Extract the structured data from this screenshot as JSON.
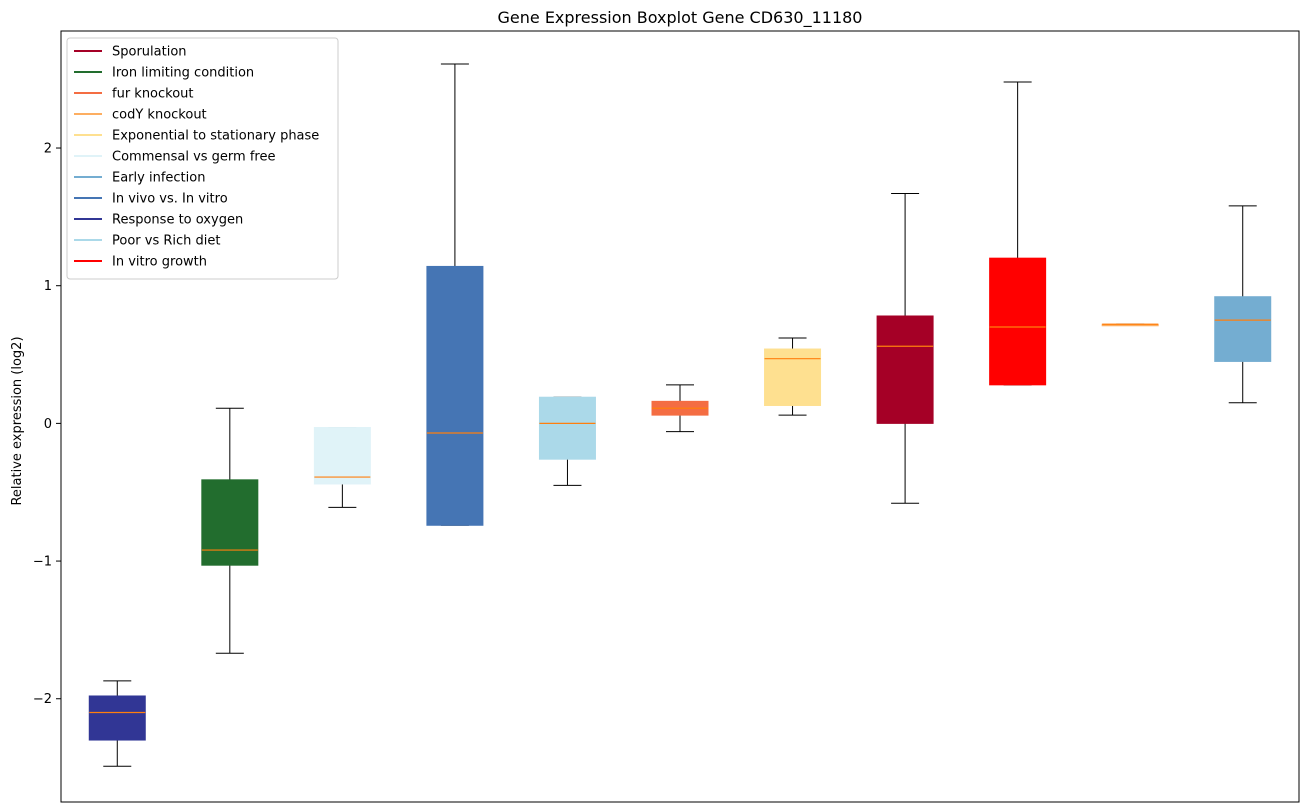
{
  "chart_data": {
    "type": "boxplot",
    "title": "Gene Expression Boxplot Gene CD630_11180",
    "xlabel": "",
    "ylabel": "Relative expression (log2)",
    "ylim": [
      -2.75,
      2.85
    ],
    "yticks": [
      -2,
      -1,
      0,
      1,
      2
    ],
    "ytick_labels": [
      "−2",
      "−1",
      "0",
      "1",
      "2"
    ],
    "grid": false,
    "legend_position": "top-left",
    "legend": [
      {
        "label": "Sporulation",
        "color": "#a50026"
      },
      {
        "label": "Iron limiting condition",
        "color": "#226d2e"
      },
      {
        "label": "fur knockout",
        "color": "#f46d43"
      },
      {
        "label": "codY knockout",
        "color": "#fdae61"
      },
      {
        "label": "Exponential to stationary phase",
        "color": "#fee090"
      },
      {
        "label": "Commensal vs germ free",
        "color": "#e0f3f8"
      },
      {
        "label": "Early infection",
        "color": "#74add1"
      },
      {
        "label": "In vivo vs. In vitro",
        "color": "#4575b4"
      },
      {
        "label": "Response to oxygen",
        "color": "#313695"
      },
      {
        "label": "Poor vs Rich diet",
        "color": "#abd9e9"
      },
      {
        "label": "In vitro growth",
        "color": "#ff0000"
      }
    ],
    "boxes": [
      {
        "group": "Response to oxygen",
        "whisker_low": -2.49,
        "q1": -2.3,
        "median": -2.1,
        "q3": -1.98,
        "whisker_high": -1.87,
        "color": "#313695"
      },
      {
        "group": "Iron limiting condition",
        "whisker_low": -1.67,
        "q1": -1.03,
        "median": -0.92,
        "q3": -0.41,
        "whisker_high": 0.11,
        "color": "#226d2e"
      },
      {
        "group": "Commensal vs germ free",
        "whisker_low": -0.61,
        "q1": -0.44,
        "median": -0.39,
        "q3": -0.03,
        "whisker_high": -0.03,
        "color": "#e0f3f8"
      },
      {
        "group": "In vivo vs. In vitro",
        "whisker_low": -0.74,
        "q1": -0.74,
        "median": -0.07,
        "q3": 1.14,
        "whisker_high": 2.61,
        "color": "#4575b4"
      },
      {
        "group": "Poor vs Rich diet",
        "whisker_low": -0.45,
        "q1": -0.26,
        "median": 0.0,
        "q3": 0.19,
        "whisker_high": 0.19,
        "color": "#abd9e9"
      },
      {
        "group": "fur knockout",
        "whisker_low": -0.06,
        "q1": 0.06,
        "median": 0.11,
        "q3": 0.16,
        "whisker_high": 0.28,
        "color": "#f46d43"
      },
      {
        "group": "Exponential to stationary phase",
        "whisker_low": 0.06,
        "q1": 0.13,
        "median": 0.47,
        "q3": 0.54,
        "whisker_high": 0.62,
        "color": "#fee090"
      },
      {
        "group": "Sporulation",
        "whisker_low": -0.58,
        "q1": 0.0,
        "median": 0.56,
        "q3": 0.78,
        "whisker_high": 1.67,
        "color": "#a50026"
      },
      {
        "group": "In vitro growth",
        "whisker_low": 0.28,
        "q1": 0.28,
        "median": 0.7,
        "q3": 1.2,
        "whisker_high": 2.48,
        "color": "#ff0000"
      },
      {
        "group": "codY knockout",
        "whisker_low": 0.72,
        "q1": 0.72,
        "median": 0.72,
        "q3": 0.72,
        "whisker_high": 0.72,
        "color": "#fdae61"
      },
      {
        "group": "Early infection",
        "whisker_low": 0.15,
        "q1": 0.45,
        "median": 0.75,
        "q3": 0.92,
        "whisker_high": 1.58,
        "color": "#74add1"
      }
    ],
    "median_color": "#ff7f0e"
  }
}
